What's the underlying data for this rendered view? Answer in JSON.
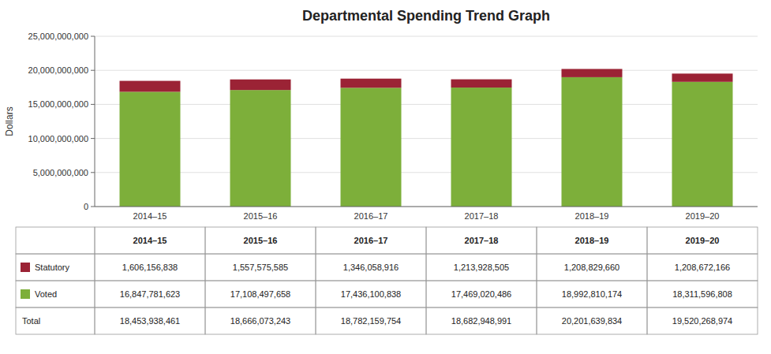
{
  "chart_data": {
    "type": "bar",
    "title": "Departmental Spending Trend Graph",
    "y_label": "Dollars",
    "categories": [
      "2014–15",
      "2015–16",
      "2016–17",
      "2017–18",
      "2018–19",
      "2019–20"
    ],
    "stacked": true,
    "grid": true,
    "ylim": [
      0,
      25000000000
    ],
    "yticks": [
      0,
      {
        "value": 5000000000,
        "label": "5,000,000,000"
      },
      {
        "value": 10000000000,
        "label": "10,000,000,000"
      },
      {
        "value": 15000000000,
        "label": "15,000,000,000"
      },
      {
        "value": 20000000000,
        "label": "20,000,000,000"
      },
      {
        "value": 25000000000,
        "label": "25,000,000,000"
      }
    ],
    "series": [
      {
        "name": "Voted",
        "color": "#7DAF3A",
        "values": [
          16847781623,
          17108497658,
          17436100838,
          17469020486,
          18992810174,
          18311596808
        ],
        "value_labels": [
          "16,847,781,623",
          "17,108,497,658",
          "17,436,100,838",
          "17,469,020,486",
          "18,992,810,174",
          "18,311,596,808"
        ]
      },
      {
        "name": "Statutory",
        "color": "#9B2335",
        "values": [
          1606156838,
          1557575585,
          1346058916,
          1213928505,
          1208829660,
          1208672166
        ],
        "value_labels": [
          "1,606,156,838",
          "1,557,575,585",
          "1,346,058,916",
          "1,213,928,505",
          "1,208,829,660",
          "1,208,672,166"
        ]
      }
    ],
    "total": {
      "name": "Total",
      "values": [
        18453938461,
        18666073243,
        18782159754,
        18682948991,
        20201639834,
        19520268974
      ],
      "value_labels": [
        "18,453,938,461",
        "18,666,073,243",
        "18,782,159,754",
        "18,682,948,991",
        "20,201,639,834",
        "19,520,268,974"
      ]
    }
  }
}
